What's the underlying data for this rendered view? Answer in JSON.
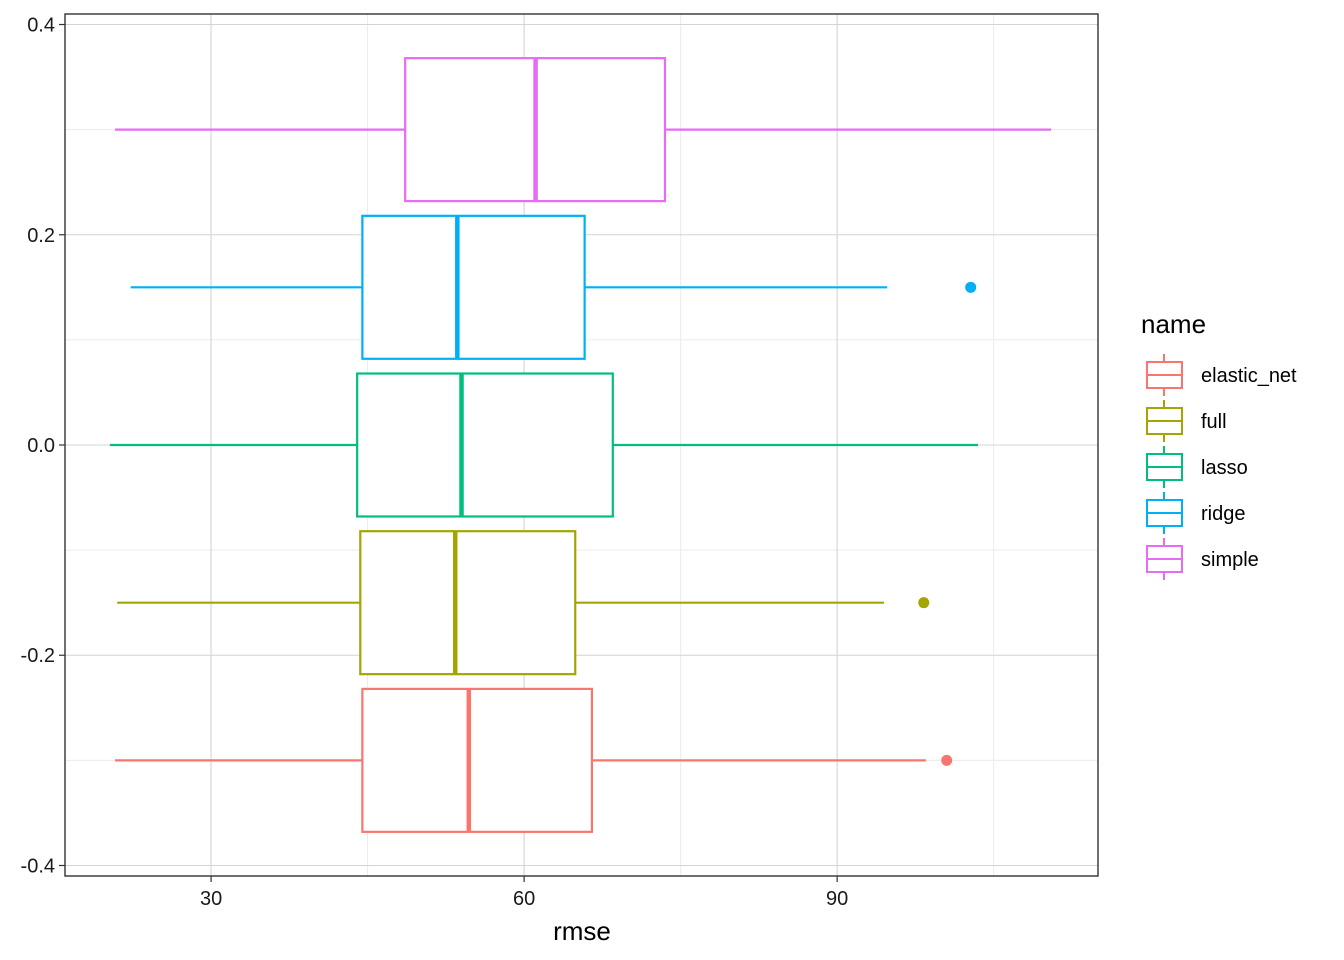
{
  "chart_data": {
    "type": "boxplot",
    "orientation": "horizontal",
    "title": "",
    "xlabel": "rmse",
    "ylabel": "",
    "xlim": [
      16,
      115
    ],
    "ylim": [
      -0.41,
      0.41
    ],
    "x_ticks": [
      30,
      60,
      90
    ],
    "y_ticks": [
      -0.4,
      -0.2,
      0.0,
      0.2,
      0.4
    ],
    "y_tick_labels": [
      "-0.4",
      "-0.2",
      "0.0",
      "0.2",
      "0.4"
    ],
    "grid": true,
    "legend": {
      "title": "name",
      "position": "right"
    },
    "series": [
      {
        "name": "elastic_net",
        "color": "#F8766D",
        "y": -0.3,
        "box_ymin": -0.368,
        "box_ymax": -0.232,
        "whisker_low": 20.8,
        "q1": 44.5,
        "median": 54.7,
        "q3": 66.5,
        "whisker_high": 98.5,
        "outliers": [
          100.5
        ]
      },
      {
        "name": "full",
        "color": "#A3A500",
        "y": -0.15,
        "box_ymin": -0.218,
        "box_ymax": -0.082,
        "whisker_low": 21.0,
        "q1": 44.3,
        "median": 53.4,
        "q3": 64.9,
        "whisker_high": 94.5,
        "outliers": [
          98.3
        ]
      },
      {
        "name": "lasso",
        "color": "#00BF7D",
        "y": 0.0,
        "box_ymin": -0.068,
        "box_ymax": 0.068,
        "whisker_low": 20.3,
        "q1": 44.0,
        "median": 54.0,
        "q3": 68.5,
        "whisker_high": 103.5,
        "outliers": []
      },
      {
        "name": "ridge",
        "color": "#00B0F6",
        "y": 0.15,
        "box_ymin": 0.082,
        "box_ymax": 0.218,
        "whisker_low": 22.3,
        "q1": 44.5,
        "median": 53.6,
        "q3": 65.8,
        "whisker_high": 94.8,
        "outliers": [
          102.8
        ]
      },
      {
        "name": "simple",
        "color": "#E76BF3",
        "y": 0.3,
        "box_ymin": 0.232,
        "box_ymax": 0.368,
        "whisker_low": 20.8,
        "q1": 48.6,
        "median": 61.1,
        "q3": 73.5,
        "whisker_high": 110.5,
        "outliers": []
      }
    ]
  }
}
